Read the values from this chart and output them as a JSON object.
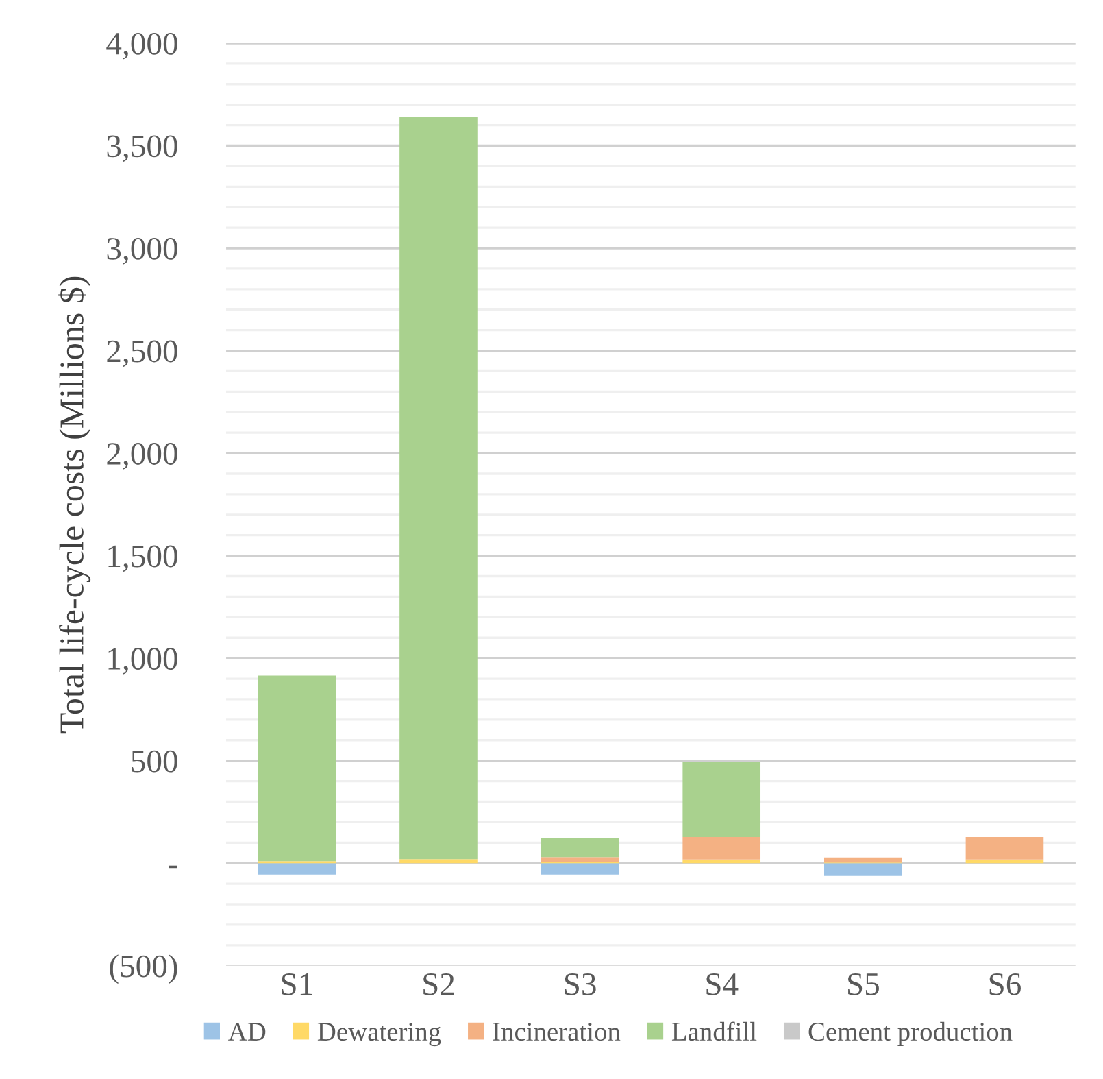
{
  "chart_data": {
    "type": "bar",
    "stacked": true,
    "ylabel": "Total life-cycle costs (Millions $)",
    "categories": [
      "S1",
      "S2",
      "S3",
      "S4",
      "S5",
      "S6"
    ],
    "series": [
      {
        "name": "AD",
        "color": "#9dc3e6",
        "values": [
          -55,
          0,
          -55,
          0,
          -62,
          0
        ]
      },
      {
        "name": "Dewatering",
        "color": "#ffd966",
        "values": [
          10,
          20,
          5,
          18,
          3,
          18
        ]
      },
      {
        "name": "Incineration",
        "color": "#f4b183",
        "values": [
          0,
          0,
          25,
          110,
          25,
          110
        ]
      },
      {
        "name": "Landfill",
        "color": "#a9d18e",
        "values": [
          905,
          3620,
          93,
          364,
          0,
          0
        ]
      },
      {
        "name": "Cement production",
        "color": "#c9c9c9",
        "values": [
          0,
          0,
          0,
          0,
          0,
          0
        ]
      }
    ],
    "ylim": [
      -500,
      4000
    ],
    "yticks": [
      {
        "value": -500,
        "label": "(500)"
      },
      {
        "value": -400,
        "label": null
      },
      {
        "value": -300,
        "label": null
      },
      {
        "value": -200,
        "label": null
      },
      {
        "value": -100,
        "label": null
      },
      {
        "value": 0,
        "label": "-"
      },
      {
        "value": 100,
        "label": null
      },
      {
        "value": 200,
        "label": null
      },
      {
        "value": 300,
        "label": null
      },
      {
        "value": 400,
        "label": null
      },
      {
        "value": 500,
        "label": "500"
      },
      {
        "value": 600,
        "label": null
      },
      {
        "value": 700,
        "label": null
      },
      {
        "value": 800,
        "label": null
      },
      {
        "value": 900,
        "label": null
      },
      {
        "value": 1000,
        "label": "1,000"
      },
      {
        "value": 1100,
        "label": null
      },
      {
        "value": 1200,
        "label": null
      },
      {
        "value": 1300,
        "label": null
      },
      {
        "value": 1400,
        "label": null
      },
      {
        "value": 1500,
        "label": "1,500"
      },
      {
        "value": 1600,
        "label": null
      },
      {
        "value": 1700,
        "label": null
      },
      {
        "value": 1800,
        "label": null
      },
      {
        "value": 1900,
        "label": null
      },
      {
        "value": 2000,
        "label": "2,000"
      },
      {
        "value": 2100,
        "label": null
      },
      {
        "value": 2200,
        "label": null
      },
      {
        "value": 2300,
        "label": null
      },
      {
        "value": 2400,
        "label": null
      },
      {
        "value": 2500,
        "label": "2,500"
      },
      {
        "value": 2600,
        "label": null
      },
      {
        "value": 2700,
        "label": null
      },
      {
        "value": 2800,
        "label": null
      },
      {
        "value": 2900,
        "label": null
      },
      {
        "value": 3000,
        "label": "3,000"
      },
      {
        "value": 3100,
        "label": null
      },
      {
        "value": 3200,
        "label": null
      },
      {
        "value": 3300,
        "label": null
      },
      {
        "value": 3400,
        "label": null
      },
      {
        "value": 3500,
        "label": "3,500"
      },
      {
        "value": 3600,
        "label": null
      },
      {
        "value": 3700,
        "label": null
      },
      {
        "value": 3800,
        "label": null
      },
      {
        "value": 3900,
        "label": null
      },
      {
        "value": 4000,
        "label": "4,000"
      }
    ],
    "grid": "y",
    "legend": "bottom"
  }
}
